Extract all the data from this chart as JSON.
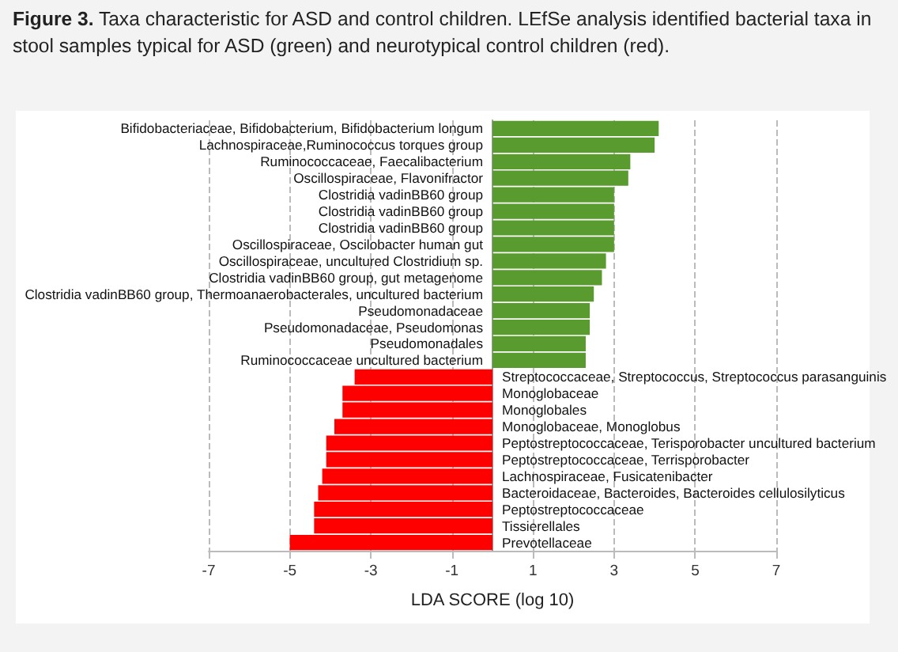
{
  "chart_data": {
    "type": "bar",
    "orientation": "horizontal",
    "title": "Figure 3. Taxa characteristic for ASD and control children. LEfSe analysis identified bacterial taxa in stool samples typical for ASD (green) and neurotypical control children (red).",
    "xlabel": "LDA SCORE (log 10)",
    "categories": [
      "Bifidobacteriaceae, Bifidobacterium, Bifidobacterium longum",
      "Lachnospiraceae,Ruminococcus torques group",
      "Ruminococcaceae, Faecalibacterium",
      "Oscillospiraceae, Flavonifractor",
      "Clostridia vadinBB60 group",
      "Clostridia vadinBB60 group",
      "Clostridia vadinBB60 group",
      "Oscillospiraceae, Oscilobacter human gut",
      "Oscillospiraceae, uncultured Clostridium sp.",
      "Clostridia vadinBB60 group, gut metagenome",
      "Clostridia vadinBB60 group, Thermoanaerobacterales, uncultured bacterium",
      "Pseudomonadaceae",
      "Pseudomonadaceae, Pseudomonas",
      "Pseudomonadales",
      "Ruminococcaceae uncultured bacterium",
      "Streptococcaceae, Streptococcus, Streptococcus parasanguinis",
      "Monoglobaceae",
      "Monoglobales",
      "Monoglobaceae, Monoglobus",
      "Peptostreptococcaceae, Terisporobacter uncultured bacterium",
      "Peptostreptococcaceae, Terrisporobacter",
      "Lachnospiraceae, Fusicatenibacter",
      "Bacteroidaceae, Bacteroides, Bacteroides cellulosilyticus",
      "Peptostreptococcaceae",
      "Tissierellales",
      "Prevotellaceae"
    ],
    "values": [
      4.1,
      4.0,
      3.4,
      3.35,
      3.0,
      3.0,
      3.0,
      3.0,
      2.8,
      2.7,
      2.5,
      2.4,
      2.4,
      2.3,
      2.3,
      -3.4,
      -3.7,
      -3.7,
      -3.9,
      -4.1,
      -4.1,
      -4.2,
      -4.3,
      -4.4,
      -4.4,
      -5.0
    ],
    "colors": [
      "#599b2f",
      "#599b2f",
      "#599b2f",
      "#599b2f",
      "#599b2f",
      "#599b2f",
      "#599b2f",
      "#599b2f",
      "#599b2f",
      "#599b2f",
      "#599b2f",
      "#599b2f",
      "#599b2f",
      "#599b2f",
      "#599b2f",
      "#ff0000",
      "#ff0000",
      "#ff0000",
      "#ff0000",
      "#ff0000",
      "#ff0000",
      "#ff0000",
      "#ff0000",
      "#ff0000",
      "#ff0000",
      "#ff0000"
    ],
    "xlim": [
      -7,
      7
    ],
    "xticks": [
      -7,
      -5,
      -3,
      -1,
      1,
      3,
      5,
      7
    ],
    "grid": "x"
  }
}
